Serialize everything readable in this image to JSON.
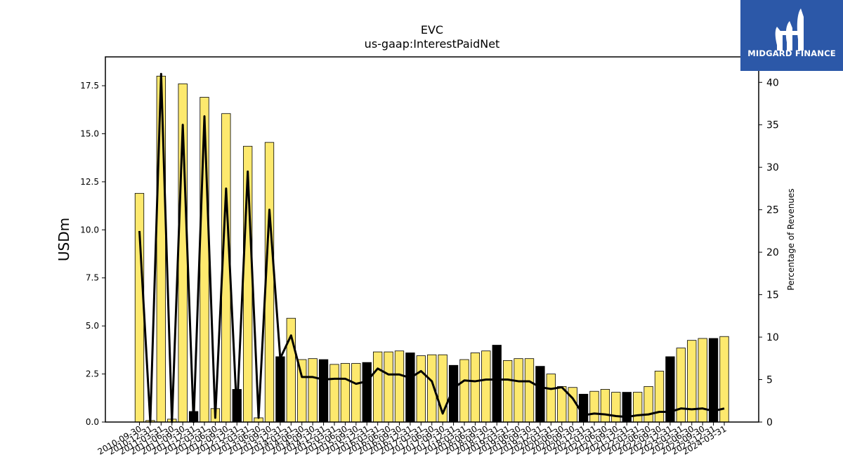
{
  "logo": {
    "text": "MIDGARD FINANCE"
  },
  "chart_data": {
    "type": "bar",
    "title": "EVC",
    "subtitle": "us-gaap:InterestPaidNet",
    "ylabel": "USDm",
    "y2label": "Percentage of Revenues",
    "ylim": [
      0,
      19
    ],
    "y2lim": [
      0,
      43
    ],
    "yticks": [
      0.0,
      2.5,
      5.0,
      7.5,
      10.0,
      12.5,
      15.0,
      17.5
    ],
    "y2ticks": [
      0,
      5,
      10,
      15,
      20,
      25,
      30,
      35,
      40
    ],
    "colors": {
      "quarter_bar": "#fde96e",
      "year_bar": "#000000",
      "line": "#000000"
    },
    "categories": [
      "2010-09-30",
      "2010-12-31",
      "2011-03-31",
      "2011-06-30",
      "2011-09-30",
      "2011-12-31",
      "2012-03-31",
      "2012-06-30",
      "2012-09-30",
      "2012-12-31",
      "2013-03-31",
      "2013-06-30",
      "2013-09-30",
      "2013-12-31",
      "2014-03-31",
      "2014-06-30",
      "2014-09-30",
      "2014-12-31",
      "2015-03-31",
      "2015-06-30",
      "2015-09-30",
      "2015-12-31",
      "2016-03-31",
      "2016-06-30",
      "2016-09-30",
      "2016-12-31",
      "2017-03-31",
      "2017-06-30",
      "2017-09-30",
      "2017-12-31",
      "2018-03-31",
      "2018-06-30",
      "2018-09-30",
      "2018-12-31",
      "2019-03-31",
      "2019-06-30",
      "2019-09-30",
      "2019-12-31",
      "2020-03-31",
      "2020-06-30",
      "2020-09-30",
      "2020-12-31",
      "2021-03-31",
      "2021-06-30",
      "2021-09-30",
      "2021-12-31",
      "2022-03-31",
      "2022-06-30",
      "2022-09-30",
      "2022-12-31",
      "2023-03-31",
      "2023-06-30",
      "2023-09-30",
      "2023-12-31",
      "2024-03-31"
    ],
    "series": [
      {
        "values": [
          11.9,
          0.08,
          18.0,
          0.15,
          17.6,
          0.55,
          16.9,
          0.7,
          16.05,
          1.7,
          14.35,
          0.22,
          14.55,
          3.4,
          5.4,
          3.25,
          3.3,
          3.25,
          3.0,
          3.05,
          3.05,
          3.1,
          3.65,
          3.65,
          3.7,
          3.6,
          3.45,
          3.5,
          3.5,
          2.95,
          3.25,
          3.6,
          3.7,
          4.0,
          3.2,
          3.3,
          3.3,
          2.9,
          2.5,
          1.85,
          1.8,
          1.45,
          1.6,
          1.7,
          1.55,
          1.55,
          1.55,
          1.85,
          2.65,
          3.4,
          3.85,
          4.25,
          4.35,
          4.35,
          4.45
        ],
        "annual": [
          false,
          false,
          false,
          false,
          false,
          true,
          false,
          false,
          false,
          true,
          false,
          false,
          false,
          true,
          false,
          false,
          false,
          true,
          false,
          false,
          false,
          true,
          false,
          false,
          false,
          true,
          false,
          false,
          false,
          true,
          false,
          false,
          false,
          true,
          false,
          false,
          false,
          true,
          false,
          false,
          false,
          true,
          false,
          false,
          false,
          true,
          false,
          false,
          false,
          true,
          false,
          false,
          false,
          true,
          false
        ]
      },
      {
        "axis": "right",
        "type": "line",
        "values": [
          22.5,
          0.0,
          41.0,
          0.0,
          35.0,
          0.0,
          36.0,
          0.5,
          27.5,
          1.0,
          29.5,
          0.5,
          25.0,
          7.5,
          10.2,
          5.3,
          5.3,
          5.0,
          5.1,
          5.1,
          4.5,
          4.8,
          6.3,
          5.6,
          5.6,
          5.2,
          6.0,
          4.8,
          1.0,
          4.0,
          4.9,
          4.8,
          5.0,
          5.0,
          5.0,
          4.8,
          4.8,
          4.1,
          3.9,
          4.1,
          2.8,
          0.8,
          1.0,
          0.9,
          0.7,
          0.6,
          0.8,
          0.9,
          1.2,
          1.2,
          1.6,
          1.5,
          1.6,
          1.3,
          1.6
        ]
      }
    ],
    "grid": false,
    "legend": "none"
  }
}
